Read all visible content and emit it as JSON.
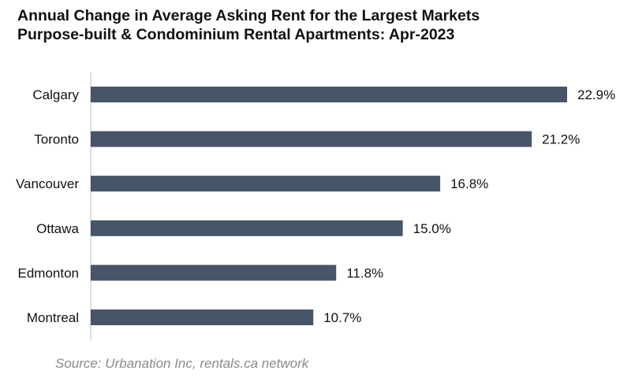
{
  "title_lines": [
    "Annual Change in Average Asking Rent for the Largest Markets",
    "Purpose-built & Condominium Rental Apartments: Apr-2023"
  ],
  "source": "Source: Urbanation Inc, rentals.ca network",
  "colors": {
    "bar": "#475569",
    "axis": "#bfbfbf",
    "text": "#111111",
    "source_text": "#8a8a8a"
  },
  "chart_data": {
    "type": "bar",
    "orientation": "horizontal",
    "title": "Annual Change in Average Asking Rent for the Largest Markets Purpose-built & Condominium Rental Apartments: Apr-2023",
    "categories": [
      "Calgary",
      "Toronto",
      "Vancouver",
      "Ottawa",
      "Edmonton",
      "Montreal"
    ],
    "values": [
      22.9,
      21.2,
      16.8,
      15.0,
      11.8,
      10.7
    ],
    "value_labels": [
      "22.9%",
      "21.2%",
      "16.8%",
      "15.0%",
      "11.8%",
      "10.7%"
    ],
    "xlim": [
      0,
      22.9
    ],
    "grid": false,
    "legend": "none"
  }
}
